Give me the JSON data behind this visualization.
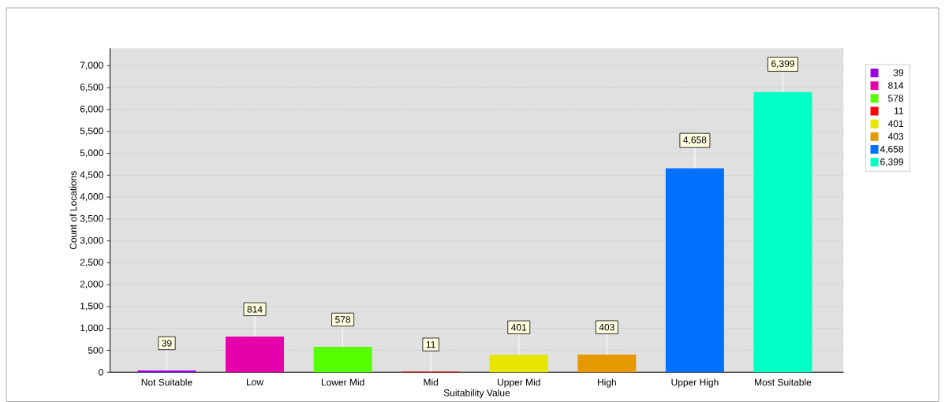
{
  "chart_data": {
    "type": "bar",
    "xlabel": "Suitability Value",
    "ylabel": "Count of Locations",
    "categories": [
      "Not Suitable",
      "Low",
      "Lower Mid",
      "Mid",
      "Upper Mid",
      "High",
      "Upper High",
      "Most Suitable"
    ],
    "series": [
      {
        "name": "39",
        "color": "#a000e6",
        "values": [
          39,
          null,
          null,
          null,
          null,
          null,
          null,
          null
        ],
        "value_labels": [
          "39",
          null,
          null,
          null,
          null,
          null,
          null,
          null
        ]
      },
      {
        "name": "814",
        "color": "#e600a9",
        "values": [
          null,
          814,
          null,
          null,
          null,
          null,
          null,
          null
        ],
        "value_labels": [
          null,
          "814",
          null,
          null,
          null,
          null,
          null,
          null
        ]
      },
      {
        "name": "578",
        "color": "#55ff00",
        "values": [
          null,
          null,
          578,
          null,
          null,
          null,
          null,
          null
        ],
        "value_labels": [
          null,
          null,
          "578",
          null,
          null,
          null,
          null,
          null
        ]
      },
      {
        "name": "11",
        "color": "#ff0000",
        "values": [
          null,
          null,
          null,
          11,
          null,
          null,
          null,
          null
        ],
        "value_labels": [
          null,
          null,
          null,
          "11",
          null,
          null,
          null,
          null
        ]
      },
      {
        "name": "401",
        "color": "#e6e600",
        "values": [
          null,
          null,
          null,
          null,
          401,
          null,
          null,
          null
        ],
        "value_labels": [
          null,
          null,
          null,
          null,
          "401",
          null,
          null,
          null
        ]
      },
      {
        "name": "403",
        "color": "#e69800",
        "values": [
          null,
          null,
          null,
          null,
          null,
          403,
          null,
          null
        ],
        "value_labels": [
          null,
          null,
          null,
          null,
          null,
          "403",
          null,
          null
        ]
      },
      {
        "name": "4,658",
        "color": "#0070ff",
        "values": [
          null,
          null,
          null,
          null,
          null,
          null,
          4658,
          null
        ],
        "value_labels": [
          null,
          null,
          null,
          null,
          null,
          null,
          "4,658",
          null
        ]
      },
      {
        "name": "6,399",
        "color": "#00ffc5",
        "values": [
          null,
          null,
          null,
          null,
          null,
          null,
          null,
          6399
        ],
        "value_labels": [
          null,
          null,
          null,
          null,
          null,
          null,
          null,
          "6,399"
        ]
      }
    ],
    "ylim": [
      0,
      7400
    ],
    "yticks": [
      {
        "value": 0,
        "label": "0"
      },
      {
        "value": 500,
        "label": "500"
      },
      {
        "value": 1000,
        "label": "1,000"
      },
      {
        "value": 1500,
        "label": "1,500"
      },
      {
        "value": 2000,
        "label": "2,000"
      },
      {
        "value": 2500,
        "label": "2,500"
      },
      {
        "value": 3000,
        "label": "3,000"
      },
      {
        "value": 3500,
        "label": "3,500"
      },
      {
        "value": 4000,
        "label": "4,000"
      },
      {
        "value": 4500,
        "label": "4,500"
      },
      {
        "value": 5000,
        "label": "5,000"
      },
      {
        "value": 5500,
        "label": "5,500"
      },
      {
        "value": 6000,
        "label": "6,000"
      },
      {
        "value": 6500,
        "label": "6,500"
      },
      {
        "value": 7000,
        "label": "7,000"
      }
    ],
    "grid": "y",
    "legend": "right"
  }
}
